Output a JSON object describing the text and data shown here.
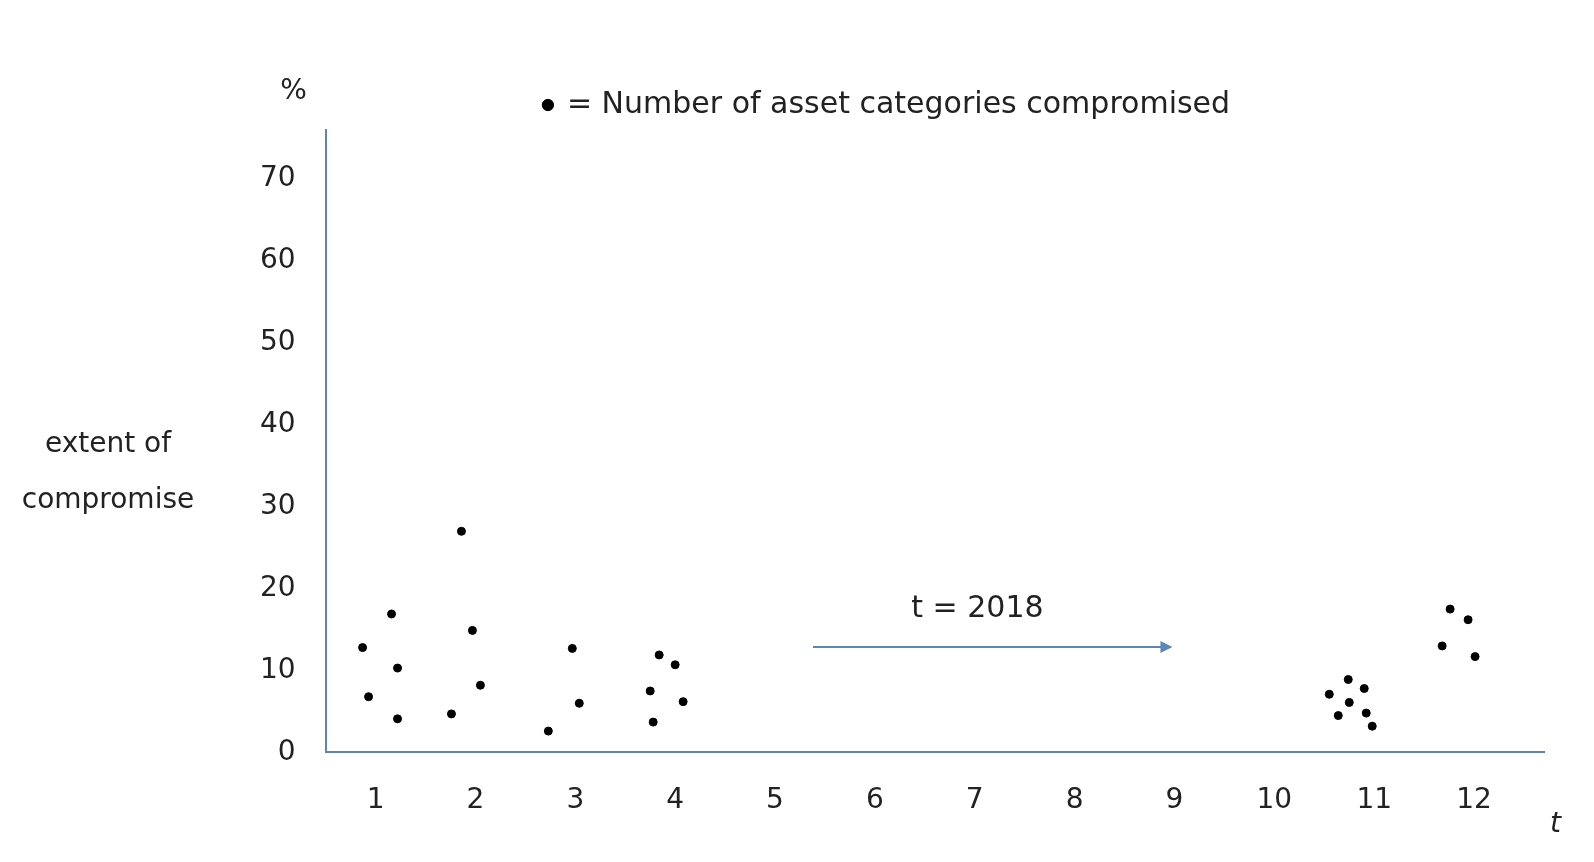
{
  "chart_data": {
    "type": "scatter",
    "xlabel": "t",
    "ylabel": "extent of compromise",
    "annotations": [
      "%",
      "t = 2018"
    ],
    "xlim": [
      0.5,
      12.7
    ],
    "xticks": [
      1,
      2,
      3,
      4,
      5,
      6,
      7,
      8,
      9,
      10,
      11,
      12
    ],
    "ylim": [
      0,
      76
    ],
    "yticks": [
      0,
      10,
      20,
      30,
      40,
      50,
      60,
      70
    ],
    "grid": false,
    "legend": "top",
    "marker": "circle",
    "series": [
      {
        "name": "= Number of asset categories compromised",
        "color": "#000000",
        "x": [
          0.87,
          0.93,
          1.16,
          1.22,
          1.22,
          1.76,
          1.86,
          1.97,
          2.05,
          2.73,
          2.97,
          3.04,
          3.75,
          3.78,
          3.84,
          4.0,
          4.08,
          10.55,
          10.64,
          10.74,
          10.75,
          10.9,
          10.92,
          10.98,
          11.68,
          11.76,
          11.94,
          12.01
        ],
        "values": [
          12.8,
          6.8,
          16.9,
          10.3,
          4.1,
          4.7,
          27.0,
          14.9,
          8.2,
          2.6,
          12.7,
          6.0,
          7.5,
          3.7,
          11.9,
          10.7,
          6.2,
          7.1,
          4.5,
          8.9,
          6.1,
          7.8,
          4.8,
          3.2,
          13.0,
          17.5,
          16.2,
          11.7
        ]
      }
    ]
  }
}
